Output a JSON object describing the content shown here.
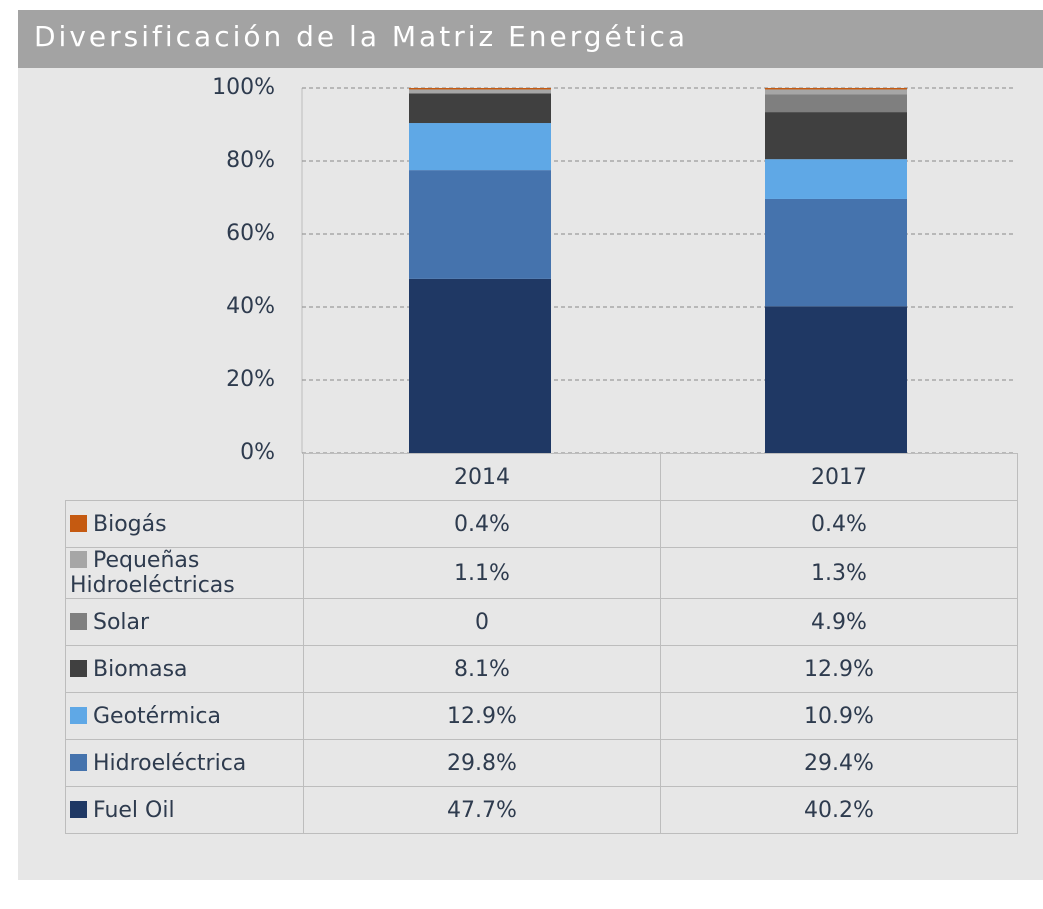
{
  "chart_data": {
    "type": "stacked_bar",
    "title": "Diversificación de la Matriz Energética",
    "categories": [
      "2014",
      "2017"
    ],
    "ylim": [
      0,
      100
    ],
    "yticks": [
      {
        "value": 0,
        "label": "0%"
      },
      {
        "value": 20,
        "label": "20%"
      },
      {
        "value": 40,
        "label": "40%"
      },
      {
        "value": 60,
        "label": "60%"
      },
      {
        "value": 80,
        "label": "80%"
      },
      {
        "value": 100,
        "label": "100%"
      }
    ],
    "grid": true,
    "series": [
      {
        "name": "Fuel Oil",
        "color": "#1f3864",
        "values": [
          47.7,
          40.2
        ],
        "value_labels": [
          "47.7%",
          "40.2%"
        ]
      },
      {
        "name": "Hidroeléctrica",
        "color": "#4573ad",
        "values": [
          29.8,
          29.4
        ],
        "value_labels": [
          "29.8%",
          "29.4%"
        ]
      },
      {
        "name": "Geotérmica",
        "color": "#5fa8e6",
        "values": [
          12.9,
          10.9
        ],
        "value_labels": [
          "12.9%",
          "10.9%"
        ]
      },
      {
        "name": "Biomasa",
        "color": "#404040",
        "values": [
          8.1,
          12.9
        ],
        "value_labels": [
          "8.1%",
          "12.9%"
        ]
      },
      {
        "name": "Solar",
        "color": "#7f7f7f",
        "values": [
          0,
          4.9
        ],
        "value_labels": [
          "0",
          "4.9%"
        ]
      },
      {
        "name": "Pequeñas Hidroeléctricas",
        "color": "#a6a6a6",
        "values": [
          1.1,
          1.3
        ],
        "value_labels": [
          "1.1%",
          "1.3%"
        ]
      },
      {
        "name": "Biogás",
        "color": "#c55a11",
        "values": [
          0.4,
          0.4
        ],
        "value_labels": [
          "0.4%",
          "0.4%"
        ]
      }
    ]
  }
}
